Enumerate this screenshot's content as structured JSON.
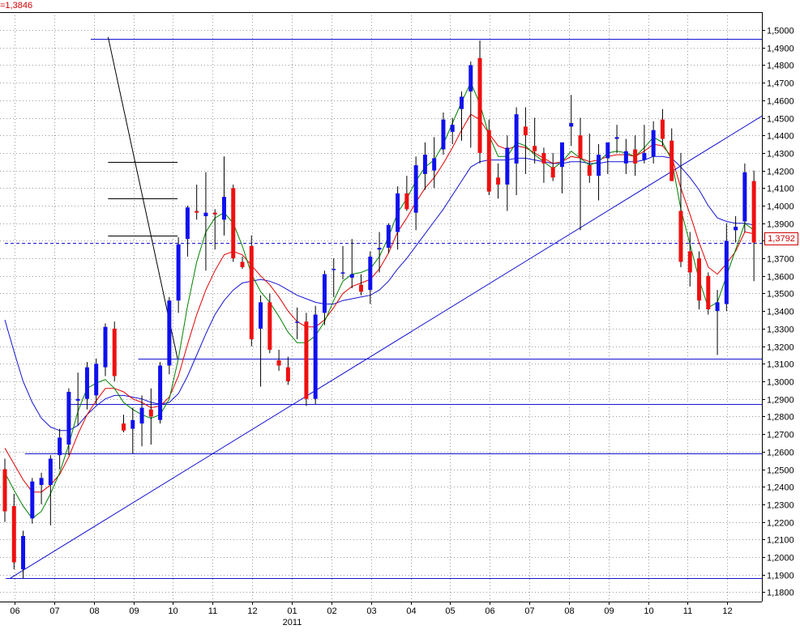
{
  "header": {
    "indicator_text": "=1,3846"
  },
  "last_price_label": "1,3792",
  "colors": {
    "up_candle": "#1010ee",
    "down_candle": "#ee1010",
    "ma_fast": "#008000",
    "ma_mid": "#e00000",
    "ma_slow": "#1414d2",
    "trend_lines": "#1414d2",
    "support_lines": "#000000",
    "grid": "#9a9a9a"
  },
  "chart_data": {
    "type": "candlestick",
    "ylim": [
      1.17,
      1.51
    ],
    "y_ticks": [
      "1,1800",
      "1,1900",
      "1,2000",
      "1,2100",
      "1,2200",
      "1,2300",
      "1,2400",
      "1,2500",
      "1,2600",
      "1,2700",
      "1,2800",
      "1,2900",
      "1,3000",
      "1,3100",
      "1,3200",
      "1,3300",
      "1,3400",
      "1,3500",
      "1,3600",
      "1,3700",
      "1,3800",
      "1,3900",
      "1,4000",
      "1,4100",
      "1,4200",
      "1,4300",
      "1,4400",
      "1,4500",
      "1,4600",
      "1,4700",
      "1,4800",
      "1,4900",
      "1,5000"
    ],
    "y_tick_values": [
      1.18,
      1.19,
      1.2,
      1.21,
      1.22,
      1.23,
      1.24,
      1.25,
      1.26,
      1.27,
      1.28,
      1.29,
      1.3,
      1.31,
      1.32,
      1.33,
      1.34,
      1.35,
      1.36,
      1.37,
      1.38,
      1.39,
      1.4,
      1.41,
      1.42,
      1.43,
      1.44,
      1.45,
      1.46,
      1.47,
      1.48,
      1.49,
      1.5
    ],
    "x_ticks": [
      "06",
      "07",
      "08",
      "09",
      "10",
      "11",
      "12",
      "01",
      "02",
      "03",
      "04",
      "05",
      "06",
      "07",
      "08",
      "09",
      "10",
      "11",
      "12"
    ],
    "x_year_label": "2011",
    "x_year_under": "01",
    "candles": [
      {
        "o": 1.25,
        "h": 1.256,
        "l": 1.22,
        "c": 1.226
      },
      {
        "o": 1.229,
        "h": 1.236,
        "l": 1.193,
        "c": 1.197
      },
      {
        "o": 1.193,
        "h": 1.215,
        "l": 1.188,
        "c": 1.212
      },
      {
        "o": 1.222,
        "h": 1.245,
        "l": 1.219,
        "c": 1.243
      },
      {
        "o": 1.241,
        "h": 1.248,
        "l": 1.23,
        "c": 1.245
      },
      {
        "o": 1.241,
        "h": 1.258,
        "l": 1.218,
        "c": 1.256
      },
      {
        "o": 1.258,
        "h": 1.273,
        "l": 1.25,
        "c": 1.268
      },
      {
        "o": 1.264,
        "h": 1.296,
        "l": 1.258,
        "c": 1.294
      },
      {
        "o": 1.289,
        "h": 1.305,
        "l": 1.275,
        "c": 1.29
      },
      {
        "o": 1.29,
        "h": 1.311,
        "l": 1.284,
        "c": 1.308
      },
      {
        "o": 1.292,
        "h": 1.313,
        "l": 1.287,
        "c": 1.31
      },
      {
        "o": 1.308,
        "h": 1.333,
        "l": 1.303,
        "c": 1.331
      },
      {
        "o": 1.33,
        "h": 1.334,
        "l": 1.3,
        "c": 1.303
      },
      {
        "o": 1.276,
        "h": 1.281,
        "l": 1.271,
        "c": 1.272
      },
      {
        "o": 1.273,
        "h": 1.285,
        "l": 1.259,
        "c": 1.278
      },
      {
        "o": 1.276,
        "h": 1.292,
        "l": 1.263,
        "c": 1.285
      },
      {
        "o": 1.284,
        "h": 1.296,
        "l": 1.264,
        "c": 1.28
      },
      {
        "o": 1.278,
        "h": 1.311,
        "l": 1.276,
        "c": 1.309
      },
      {
        "o": 1.309,
        "h": 1.348,
        "l": 1.304,
        "c": 1.346
      },
      {
        "o": 1.346,
        "h": 1.382,
        "l": 1.339,
        "c": 1.378
      },
      {
        "o": 1.381,
        "h": 1.4,
        "l": 1.371,
        "c": 1.399
      },
      {
        "o": 1.397,
        "h": 1.412,
        "l": 1.392,
        "c": 1.396
      },
      {
        "o": 1.394,
        "h": 1.419,
        "l": 1.363,
        "c": 1.396
      },
      {
        "o": 1.396,
        "h": 1.398,
        "l": 1.375,
        "c": 1.395
      },
      {
        "o": 1.392,
        "h": 1.428,
        "l": 1.383,
        "c": 1.405
      },
      {
        "o": 1.41,
        "h": 1.412,
        "l": 1.368,
        "c": 1.37
      },
      {
        "o": 1.368,
        "h": 1.371,
        "l": 1.364,
        "c": 1.365
      },
      {
        "o": 1.377,
        "h": 1.383,
        "l": 1.32,
        "c": 1.324
      },
      {
        "o": 1.33,
        "h": 1.349,
        "l": 1.297,
        "c": 1.345
      },
      {
        "o": 1.345,
        "h": 1.35,
        "l": 1.316,
        "c": 1.318
      },
      {
        "o": 1.312,
        "h": 1.318,
        "l": 1.306,
        "c": 1.309
      },
      {
        "o": 1.308,
        "h": 1.314,
        "l": 1.298,
        "c": 1.3
      },
      {
        "o": 1.334,
        "h": 1.342,
        "l": 1.324,
        "c": 1.334
      },
      {
        "o": 1.334,
        "h": 1.339,
        "l": 1.286,
        "c": 1.29
      },
      {
        "o": 1.29,
        "h": 1.343,
        "l": 1.287,
        "c": 1.338
      },
      {
        "o": 1.339,
        "h": 1.363,
        "l": 1.332,
        "c": 1.361
      },
      {
        "o": 1.364,
        "h": 1.37,
        "l": 1.348,
        "c": 1.364
      },
      {
        "o": 1.362,
        "h": 1.377,
        "l": 1.358,
        "c": 1.362
      },
      {
        "o": 1.359,
        "h": 1.381,
        "l": 1.353,
        "c": 1.361
      },
      {
        "o": 1.355,
        "h": 1.361,
        "l": 1.349,
        "c": 1.351
      },
      {
        "o": 1.352,
        "h": 1.374,
        "l": 1.344,
        "c": 1.371
      },
      {
        "o": 1.375,
        "h": 1.385,
        "l": 1.362,
        "c": 1.376
      },
      {
        "o": 1.376,
        "h": 1.39,
        "l": 1.373,
        "c": 1.389
      },
      {
        "o": 1.385,
        "h": 1.411,
        "l": 1.375,
        "c": 1.407
      },
      {
        "o": 1.407,
        "h": 1.417,
        "l": 1.397,
        "c": 1.398
      },
      {
        "o": 1.396,
        "h": 1.428,
        "l": 1.386,
        "c": 1.423
      },
      {
        "o": 1.418,
        "h": 1.436,
        "l": 1.409,
        "c": 1.429
      },
      {
        "o": 1.42,
        "h": 1.439,
        "l": 1.41,
        "c": 1.427
      },
      {
        "o": 1.432,
        "h": 1.453,
        "l": 1.429,
        "c": 1.449
      },
      {
        "o": 1.442,
        "h": 1.45,
        "l": 1.435,
        "c": 1.446
      },
      {
        "o": 1.455,
        "h": 1.465,
        "l": 1.437,
        "c": 1.462
      },
      {
        "o": 1.465,
        "h": 1.482,
        "l": 1.433,
        "c": 1.48
      },
      {
        "o": 1.484,
        "h": 1.494,
        "l": 1.424,
        "c": 1.43
      },
      {
        "o": 1.443,
        "h": 1.449,
        "l": 1.406,
        "c": 1.408
      },
      {
        "o": 1.416,
        "h": 1.424,
        "l": 1.404,
        "c": 1.412
      },
      {
        "o": 1.412,
        "h": 1.44,
        "l": 1.397,
        "c": 1.433
      },
      {
        "o": 1.424,
        "h": 1.456,
        "l": 1.406,
        "c": 1.452
      },
      {
        "o": 1.445,
        "h": 1.456,
        "l": 1.418,
        "c": 1.44
      },
      {
        "o": 1.434,
        "h": 1.45,
        "l": 1.424,
        "c": 1.431
      },
      {
        "o": 1.43,
        "h": 1.433,
        "l": 1.413,
        "c": 1.424
      },
      {
        "o": 1.422,
        "h": 1.43,
        "l": 1.414,
        "c": 1.416
      },
      {
        "o": 1.422,
        "h": 1.433,
        "l": 1.407,
        "c": 1.436
      },
      {
        "o": 1.445,
        "h": 1.463,
        "l": 1.434,
        "c": 1.447
      },
      {
        "o": 1.44,
        "h": 1.45,
        "l": 1.386,
        "c": 1.427
      },
      {
        "o": 1.423,
        "h": 1.441,
        "l": 1.413,
        "c": 1.417
      },
      {
        "o": 1.417,
        "h": 1.435,
        "l": 1.403,
        "c": 1.429
      },
      {
        "o": 1.427,
        "h": 1.434,
        "l": 1.418,
        "c": 1.436
      },
      {
        "o": 1.438,
        "h": 1.446,
        "l": 1.43,
        "c": 1.439
      },
      {
        "o": 1.424,
        "h": 1.438,
        "l": 1.418,
        "c": 1.431
      },
      {
        "o": 1.432,
        "h": 1.44,
        "l": 1.417,
        "c": 1.424
      },
      {
        "o": 1.426,
        "h": 1.446,
        "l": 1.424,
        "c": 1.43
      },
      {
        "o": 1.428,
        "h": 1.448,
        "l": 1.424,
        "c": 1.443
      },
      {
        "o": 1.449,
        "h": 1.455,
        "l": 1.434,
        "c": 1.438
      },
      {
        "o": 1.437,
        "h": 1.444,
        "l": 1.414,
        "c": 1.414
      },
      {
        "o": 1.397,
        "h": 1.43,
        "l": 1.365,
        "c": 1.368
      },
      {
        "o": 1.374,
        "h": 1.385,
        "l": 1.354,
        "c": 1.362
      },
      {
        "o": 1.37,
        "h": 1.374,
        "l": 1.341,
        "c": 1.346
      },
      {
        "o": 1.36,
        "h": 1.362,
        "l": 1.338,
        "c": 1.341
      },
      {
        "o": 1.34,
        "h": 1.352,
        "l": 1.315,
        "c": 1.345
      },
      {
        "o": 1.344,
        "h": 1.39,
        "l": 1.34,
        "c": 1.38
      },
      {
        "o": 1.386,
        "h": 1.394,
        "l": 1.379,
        "c": 1.388
      },
      {
        "o": 1.391,
        "h": 1.424,
        "l": 1.385,
        "c": 1.419
      },
      {
        "o": 1.414,
        "h": 1.42,
        "l": 1.357,
        "c": 1.379
      }
    ],
    "ma_fast": [
      1.248,
      1.238,
      1.229,
      1.222,
      1.226,
      1.236,
      1.248,
      1.264,
      1.283,
      1.296,
      1.299,
      1.301,
      1.296,
      1.288,
      1.284,
      1.281,
      1.279,
      1.281,
      1.29,
      1.313,
      1.343,
      1.368,
      1.385,
      1.393,
      1.396,
      1.39,
      1.377,
      1.361,
      1.351,
      1.345,
      1.337,
      1.328,
      1.322,
      1.322,
      1.326,
      1.334,
      1.346,
      1.357,
      1.361,
      1.362,
      1.364,
      1.371,
      1.382,
      1.396,
      1.404,
      1.414,
      1.422,
      1.426,
      1.435,
      1.447,
      1.459,
      1.47,
      1.458,
      1.44,
      1.428,
      1.428,
      1.436,
      1.434,
      1.429,
      1.425,
      1.421,
      1.425,
      1.431,
      1.427,
      1.423,
      1.425,
      1.43,
      1.431,
      1.43,
      1.428,
      1.433,
      1.439,
      1.436,
      1.426,
      1.398,
      1.378,
      1.358,
      1.342,
      1.345,
      1.36,
      1.375,
      1.39,
      1.386
    ],
    "ma_mid": [
      1.262,
      1.253,
      1.244,
      1.237,
      1.237,
      1.241,
      1.247,
      1.257,
      1.27,
      1.281,
      1.289,
      1.296,
      1.296,
      1.294,
      1.29,
      1.288,
      1.285,
      1.286,
      1.291,
      1.303,
      1.321,
      1.338,
      1.352,
      1.363,
      1.372,
      1.374,
      1.372,
      1.366,
      1.36,
      1.355,
      1.348,
      1.34,
      1.334,
      1.331,
      1.331,
      1.335,
      1.342,
      1.35,
      1.354,
      1.356,
      1.358,
      1.364,
      1.373,
      1.385,
      1.393,
      1.402,
      1.41,
      1.416,
      1.424,
      1.433,
      1.443,
      1.452,
      1.449,
      1.441,
      1.434,
      1.432,
      1.434,
      1.433,
      1.43,
      1.427,
      1.424,
      1.425,
      1.428,
      1.427,
      1.425,
      1.426,
      1.428,
      1.429,
      1.429,
      1.428,
      1.431,
      1.435,
      1.434,
      1.428,
      1.41,
      1.395,
      1.379,
      1.365,
      1.361,
      1.367,
      1.374,
      1.385,
      1.384
    ],
    "ma_slow": [
      1.335,
      1.317,
      1.3,
      1.288,
      1.279,
      1.274,
      1.272,
      1.272,
      1.275,
      1.281,
      1.286,
      1.29,
      1.292,
      1.292,
      1.291,
      1.29,
      1.288,
      1.287,
      1.288,
      1.293,
      1.303,
      1.315,
      1.327,
      1.338,
      1.346,
      1.352,
      1.356,
      1.357,
      1.358,
      1.357,
      1.355,
      1.352,
      1.349,
      1.347,
      1.345,
      1.344,
      1.344,
      1.346,
      1.347,
      1.348,
      1.349,
      1.352,
      1.357,
      1.364,
      1.37,
      1.377,
      1.384,
      1.391,
      1.398,
      1.406,
      1.414,
      1.422,
      1.425,
      1.426,
      1.426,
      1.426,
      1.427,
      1.427,
      1.426,
      1.425,
      1.424,
      1.424,
      1.425,
      1.425,
      1.424,
      1.424,
      1.425,
      1.425,
      1.425,
      1.425,
      1.426,
      1.428,
      1.428,
      1.427,
      1.422,
      1.416,
      1.409,
      1.4,
      1.393,
      1.391,
      1.39,
      1.39,
      1.389
    ],
    "horizontal_lines": [
      {
        "y": 1.495,
        "x_from": "c9.4",
        "x_to": "edge",
        "color": "blue"
      },
      {
        "y": 1.313,
        "x_from": "c14.6",
        "x_to": "edge",
        "color": "blue"
      },
      {
        "y": 1.287,
        "x_from": "c6.9",
        "x_to": "edge",
        "color": "blue"
      },
      {
        "y": 1.259,
        "x_from": "c2.2",
        "x_to": "edge",
        "color": "blue"
      },
      {
        "y": 1.188,
        "x_from": "c0.1",
        "x_to": "edge",
        "color": "blue"
      },
      {
        "y": 1.425,
        "x_from": "c11.3",
        "x_to": "c18.9",
        "color": "black"
      },
      {
        "y": 1.404,
        "x_from": "c11.3",
        "x_to": "c18.9",
        "color": "black"
      },
      {
        "y": 1.383,
        "x_from": "c11.3",
        "x_to": "c18.9",
        "color": "black"
      },
      {
        "y": 1.379,
        "x_from": "c0",
        "x_to": "edge",
        "color": "blue-dashed"
      }
    ],
    "diagonal_lines": [
      {
        "from": {
          "x": "c0.6",
          "y": 1.188
        },
        "to": {
          "x": "edge",
          "y": 1.451
        },
        "color": "blue"
      },
      {
        "from": {
          "x": "c11.3",
          "y": 1.496
        },
        "to": {
          "x": "c18.9",
          "y": 1.313
        },
        "color": "black"
      }
    ]
  }
}
